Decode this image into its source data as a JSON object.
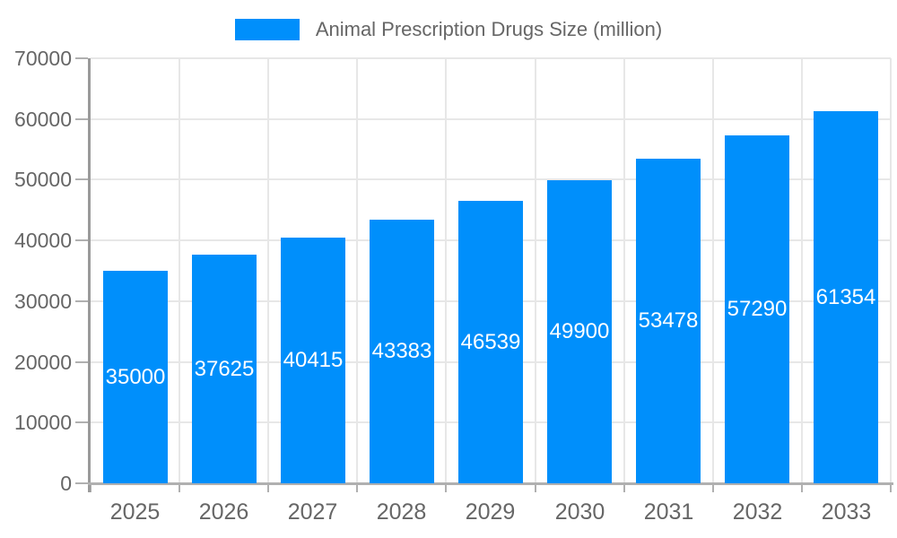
{
  "chart_data": {
    "type": "bar",
    "title": "Animal Prescription Drugs Size (million)",
    "categories": [
      "2025",
      "2026",
      "2027",
      "2028",
      "2029",
      "2030",
      "2031",
      "2032",
      "2033"
    ],
    "series": [
      {
        "name": "Animal Prescription Drugs Size (million)",
        "values": [
          35000,
          37625,
          40415,
          43383,
          46539,
          49900,
          53478,
          57290,
          61354
        ]
      }
    ],
    "data_labels": [
      "35000",
      "37625",
      "40415",
      "43383",
      "46539",
      "49900",
      "53478",
      "57290",
      "61354"
    ],
    "xlabel": "",
    "ylabel": "",
    "ylim": [
      0,
      70000
    ],
    "yticks": [
      0,
      10000,
      20000,
      30000,
      40000,
      50000,
      60000,
      70000
    ],
    "ytick_labels": [
      "0",
      "10000",
      "20000",
      "30000",
      "40000",
      "50000",
      "60000",
      "70000"
    ],
    "grid": true,
    "legend_position": "top",
    "colors": {
      "bar": "#008FFB",
      "grid_line": "#e7e7e7",
      "y_axis_line": "#9a9a9a",
      "x_axis_line": "#b0b0b0",
      "tick_mark": "#b0b0b0",
      "axis_label": "#666666",
      "data_label": "#ffffff",
      "background": "#ffffff"
    }
  }
}
